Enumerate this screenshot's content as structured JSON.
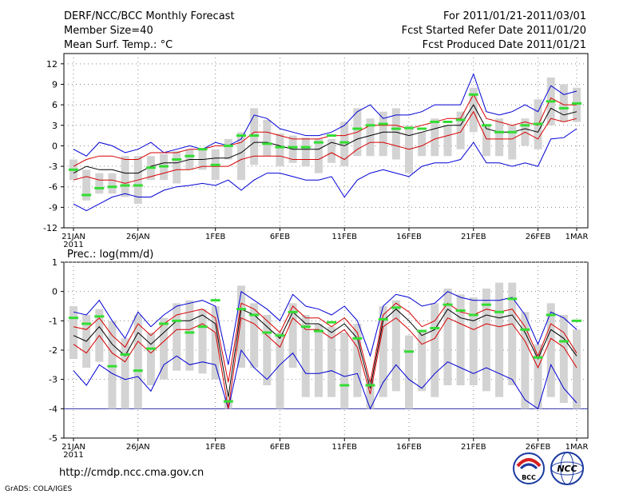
{
  "header": {
    "title": "DERF/NCC/BCC Monthly Forecast",
    "member_size": "Member Size=40",
    "variable": "Mean Surf. Temp.: °C",
    "period": "For 2011/01/21-2011/03/01",
    "started": "Fcst Started Refer Date 2011/01/20",
    "produced": "Fcst Produced Date 2011/01/21"
  },
  "footer": {
    "url": "http://cmdp.ncc.cma.gov.cn",
    "grads": "GrADS: COLA/IGES",
    "logo_bcc": "BCC",
    "logo_ncc": "NCC"
  },
  "colors": {
    "spread": "#0000d6",
    "quartile": "#d60000",
    "median": "#000000",
    "box": "#d3d3d3",
    "member": "#33dd33",
    "grid": "#888888"
  },
  "chart_data": [
    {
      "type": "line",
      "title": "",
      "ylabel": "Mean Surf. Temp.: °C",
      "x_tick_labels": [
        "21JAN",
        "26JAN",
        "1FEB",
        "6FEB",
        "11FEB",
        "16FEB",
        "21FEB",
        "26FEB",
        "1MAR"
      ],
      "x_tick_days": [
        0,
        5,
        11,
        16,
        21,
        26,
        31,
        36,
        39
      ],
      "x_year_label": "2011",
      "ylim": [
        -12,
        13.5
      ],
      "y_ticks": [
        -12,
        -9,
        -6,
        -3,
        0,
        3,
        6,
        9,
        12
      ],
      "series": [
        {
          "name": "max",
          "values": [
            -0.5,
            -1.5,
            0.5,
            0,
            -1,
            -0.5,
            0.5,
            -1,
            -0.5,
            0,
            -0.5,
            0.5,
            0,
            1,
            4.5,
            4,
            2.5,
            2,
            1.5,
            1.5,
            2,
            3,
            5,
            6,
            4,
            4.5,
            4.5,
            5,
            6,
            6,
            6,
            10.5,
            5,
            4.5,
            5,
            6,
            5,
            8.8,
            7.5,
            8
          ]
        },
        {
          "name": "q75",
          "values": [
            -3,
            -2,
            -1.5,
            -1.5,
            -2,
            -2,
            -1,
            -1,
            -1,
            -0.5,
            -0.5,
            0,
            0,
            0.5,
            2,
            2,
            1.5,
            1,
            1,
            1,
            1.5,
            1.5,
            2,
            3,
            3,
            3,
            2.5,
            3,
            3.5,
            4,
            4,
            7.5,
            4,
            3.5,
            3,
            3.5,
            3,
            7,
            6,
            6
          ]
        },
        {
          "name": "median",
          "values": [
            -4,
            -3,
            -3.5,
            -3.5,
            -4,
            -4,
            -3,
            -2.5,
            -2.5,
            -2,
            -2,
            -1.8,
            -1.8,
            -1,
            0.5,
            0.5,
            0,
            -0.5,
            -0.5,
            -0.5,
            0.5,
            0,
            1,
            1.5,
            2,
            2,
            1.5,
            2,
            2.5,
            3,
            3,
            6,
            2.5,
            2,
            2,
            2.5,
            2,
            5.5,
            4.5,
            5
          ]
        },
        {
          "name": "q25",
          "values": [
            -5,
            -4.5,
            -5,
            -5,
            -5.5,
            -5,
            -4.5,
            -4,
            -3.5,
            -3.5,
            -3,
            -3,
            -3,
            -2,
            -1.5,
            -1.5,
            -1.5,
            -2,
            -2,
            -2,
            -1,
            -2,
            -0.5,
            0.5,
            0.5,
            0,
            -0.5,
            0,
            1,
            1.5,
            2,
            5,
            1,
            1,
            1,
            2,
            1,
            4,
            3.5,
            4
          ]
        },
        {
          "name": "min",
          "values": [
            -8.5,
            -9.5,
            -8.5,
            -7.5,
            -7,
            -7.5,
            -7.5,
            -6.5,
            -6,
            -5.8,
            -5.5,
            -5.8,
            -5,
            -6.5,
            -5,
            -4,
            -4,
            -4.5,
            -5,
            -5,
            -4.5,
            -7.5,
            -5,
            -4,
            -3.5,
            -4,
            -4.5,
            -3,
            -2.5,
            -2.5,
            -2,
            0.5,
            -2.5,
            -2.5,
            -3,
            -2.5,
            -3,
            1,
            1.2,
            2.5
          ]
        },
        {
          "name": "member",
          "values": [
            -3.5,
            -7.2,
            -6.2,
            -6,
            -5.8,
            -5.8,
            -3.2,
            -3,
            -2,
            -1.5,
            -0.5,
            -2.8,
            0,
            1.5,
            1.5,
            0.3,
            -0.2,
            -0.2,
            -0.2,
            0.5,
            1.5,
            0.5,
            2.5,
            3,
            3.2,
            2.5,
            2.6,
            2.5,
            3.5,
            3.5,
            3.8,
            7.5,
            3,
            2,
            2,
            3,
            3.2,
            6.5,
            5.5,
            6.2
          ]
        },
        {
          "name": "box_top",
          "values": [
            -2,
            -3.5,
            -4,
            -4,
            -1.5,
            -1.5,
            -1.5,
            -1.2,
            -0.8,
            -0.5,
            -0.3,
            -0.5,
            1,
            2,
            5.5,
            3.8,
            1.8,
            1.5,
            1.2,
            1,
            1,
            3.5,
            5.5,
            4,
            5,
            5.5,
            3,
            2,
            4,
            3,
            5,
            8.5,
            3,
            4,
            3,
            4,
            6.8,
            10,
            9,
            8.5
          ]
        },
        {
          "name": "box_bottom",
          "values": [
            -5,
            -8,
            -7,
            -7,
            -7.5,
            -8.5,
            -5,
            -5,
            -5.5,
            -3.5,
            -3.5,
            -5,
            -2,
            -5,
            -2.8,
            -1.5,
            -3,
            -2.5,
            -3,
            -4,
            -2.5,
            -3,
            -1.5,
            -1.5,
            -1.5,
            -2,
            -4,
            -1.5,
            -1.5,
            -1.5,
            -0.5,
            2,
            -1.5,
            -1.5,
            -2,
            0,
            -0.5,
            3,
            3.5,
            3.5
          ]
        }
      ]
    },
    {
      "type": "line",
      "title": "",
      "ylabel": "Prec.: log(mm/d)",
      "x_tick_labels": [
        "21JAN",
        "26JAN",
        "1FEB",
        "6FEB",
        "11FEB",
        "16FEB",
        "21FEB",
        "26FEB",
        "1MAR"
      ],
      "x_tick_days": [
        0,
        5,
        11,
        16,
        21,
        26,
        31,
        36,
        39
      ],
      "x_year_label": "2011",
      "ylim": [
        -5,
        1
      ],
      "y_ticks": [
        -5,
        -4,
        -3,
        -2,
        -1,
        0,
        1
      ],
      "floor_value": -4,
      "series": [
        {
          "name": "max",
          "values": [
            -0.7,
            -0.8,
            -0.3,
            -1,
            -1.6,
            -0.7,
            -1.2,
            -0.8,
            -0.5,
            -0.4,
            -0.3,
            -0.5,
            -2.5,
            0,
            -0.3,
            -0.6,
            -1,
            -0.1,
            -0.5,
            -0.6,
            -0.8,
            -0.5,
            -1,
            -2.2,
            -0.5,
            -0.1,
            -0.2,
            -0.5,
            -0.4,
            0,
            -0.2,
            -0.3,
            -0.3,
            -0.3,
            -0.2,
            -0.8,
            -1.8,
            -0.7,
            -0.9,
            -1.3
          ]
        },
        {
          "name": "q75",
          "values": [
            -1.2,
            -1.3,
            -0.9,
            -1.5,
            -1.9,
            -1.1,
            -1.5,
            -1.1,
            -0.8,
            -0.7,
            -0.6,
            -0.9,
            -3.1,
            -0.4,
            -0.6,
            -1,
            -1.4,
            -0.5,
            -0.9,
            -0.9,
            -1.2,
            -0.9,
            -1.4,
            -3.1,
            -0.8,
            -0.4,
            -0.7,
            -1.2,
            -1,
            -0.4,
            -0.7,
            -0.8,
            -0.6,
            -0.7,
            -0.6,
            -1.2,
            -2.2,
            -1.1,
            -1.4,
            -2.1
          ]
        },
        {
          "name": "median",
          "values": [
            -1.5,
            -1.7,
            -1.2,
            -1.8,
            -2.2,
            -1.4,
            -1.8,
            -1.4,
            -1,
            -1,
            -0.8,
            -1.1,
            -3.6,
            -0.6,
            -0.8,
            -1.2,
            -1.6,
            -0.7,
            -1.1,
            -1.1,
            -1.4,
            -1.1,
            -1.6,
            -3.3,
            -1,
            -0.6,
            -1,
            -1.5,
            -1.3,
            -0.6,
            -0.9,
            -1,
            -0.8,
            -0.9,
            -0.8,
            -1.4,
            -2.3,
            -1.3,
            -1.6,
            -2.2
          ]
        },
        {
          "name": "q25",
          "values": [
            -1.8,
            -2.1,
            -1.5,
            -2.1,
            -2.4,
            -1.7,
            -2.1,
            -1.7,
            -1.3,
            -1.3,
            -1.1,
            -1.4,
            -4,
            -0.9,
            -1.1,
            -1.5,
            -1.9,
            -0.9,
            -1.3,
            -1.3,
            -1.6,
            -1.3,
            -1.9,
            -3.5,
            -1.2,
            -0.9,
            -1.3,
            -1.8,
            -1.6,
            -0.9,
            -1.1,
            -1.3,
            -1.1,
            -1.2,
            -1.1,
            -1.7,
            -2.6,
            -1.6,
            -1.9,
            -2.6
          ]
        },
        {
          "name": "min",
          "values": [
            -2.7,
            -3.2,
            -2.5,
            -2.8,
            -3,
            -2.9,
            -3.4,
            -2.5,
            -2.2,
            -2.5,
            -2.4,
            -2.5,
            -4,
            -2,
            -2.6,
            -3,
            -2.5,
            -2.1,
            -2.8,
            -2.8,
            -2.7,
            -2.9,
            -2.8,
            -4,
            -3.1,
            -2.5,
            -3,
            -3.3,
            -2.8,
            -2.4,
            -2.6,
            -2.8,
            -2.6,
            -2.8,
            -3,
            -3.7,
            -4,
            -2.5,
            -3.3,
            -3.8
          ]
        },
        {
          "name": "member",
          "values": [
            -0.9,
            -1.1,
            -0.85,
            -2.55,
            -2.15,
            -2.7,
            -1.95,
            -1.1,
            -1,
            -1.4,
            -1.2,
            -0.3,
            -3.75,
            -0.6,
            -0.8,
            -1.4,
            -1.5,
            -0.7,
            -1.2,
            -1.35,
            -1.05,
            -3.2,
            -1.6,
            -3.2,
            -0.95,
            -0.55,
            -2.05,
            -1.35,
            -1.25,
            -0.45,
            -0.65,
            -0.8,
            -0.45,
            -0.7,
            -0.25,
            -1.3,
            -2.25,
            -0.8,
            -1.7,
            -1
          ]
        },
        {
          "name": "box_top",
          "values": [
            -0.5,
            -0.8,
            -0.6,
            -1,
            -1.6,
            -0.8,
            -1.4,
            -0.9,
            -0.4,
            -0.3,
            -0.6,
            -0.5,
            -3.6,
            0.2,
            -0.4,
            -0.8,
            -1.4,
            -0.4,
            -0.8,
            -1.1,
            -1.2,
            -1.4,
            -1.1,
            -3,
            -0.5,
            -0.3,
            -1.5,
            -1.3,
            -0.4,
            0.1,
            -0.1,
            -0.2,
            0.1,
            0.3,
            0.3,
            -0.7,
            -1.8,
            -0.4,
            -0.8,
            -1.3
          ]
        },
        {
          "name": "box_bottom",
          "values": [
            -2.3,
            -2.6,
            -2.4,
            -4,
            -4,
            -4,
            -3.2,
            -3,
            -2.7,
            -2.7,
            -2.8,
            -3,
            -4,
            -2.6,
            -2.6,
            -3.2,
            -4,
            -2.6,
            -3.6,
            -3.6,
            -3.6,
            -4,
            -3.6,
            -4,
            -3.6,
            -3.4,
            -4,
            -3.4,
            -3.6,
            -3.2,
            -3.2,
            -3.2,
            -3.4,
            -3.6,
            -3.2,
            -4,
            -4,
            -3.6,
            -3.8,
            -4
          ]
        }
      ]
    }
  ]
}
